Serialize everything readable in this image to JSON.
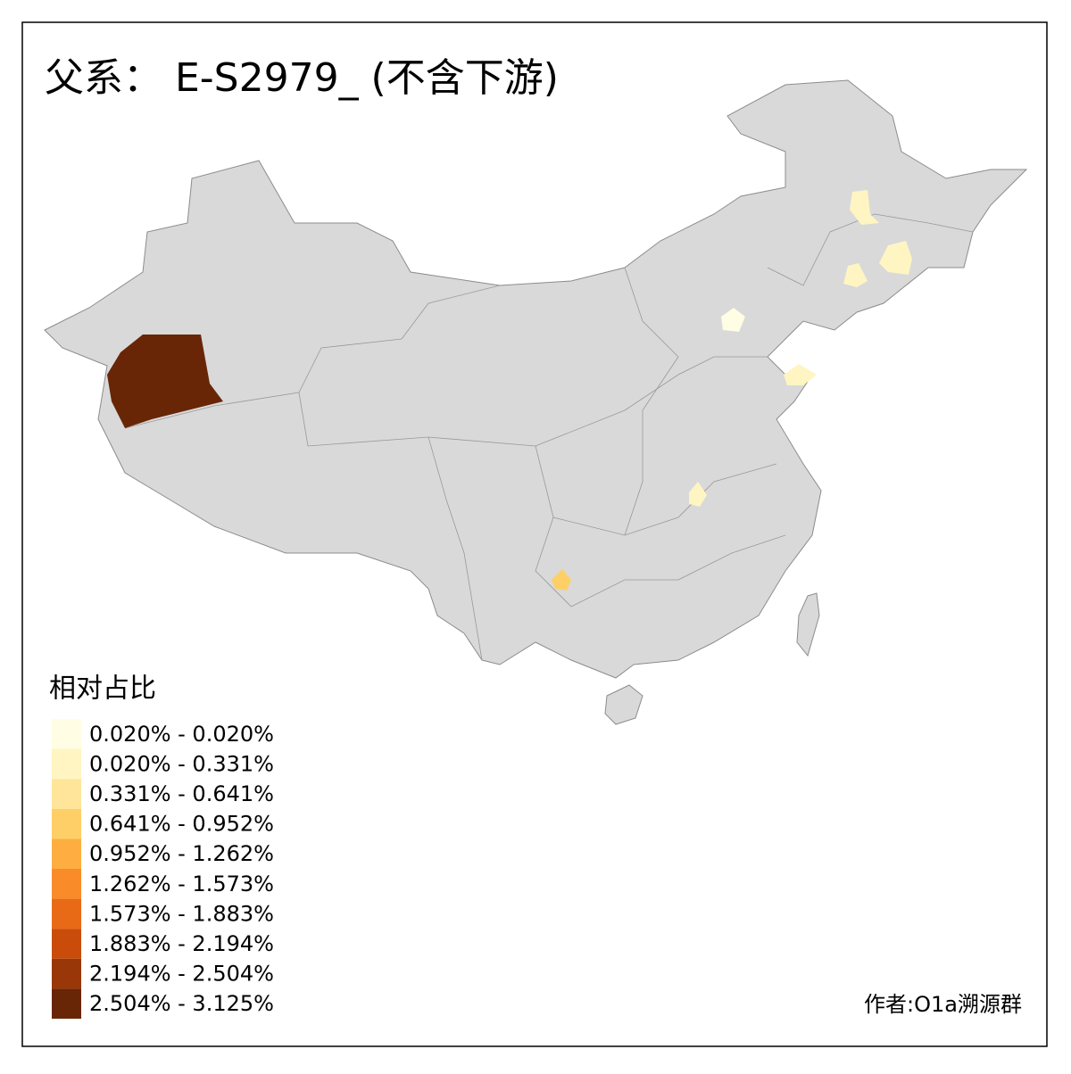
{
  "title": "父系： E-S2979_ (不含下游)",
  "legend": {
    "title": "相对占比",
    "items": [
      {
        "label": "0.020% - 0.020%",
        "color": "#fffde3"
      },
      {
        "label": "0.020% - 0.331%",
        "color": "#fff5c2"
      },
      {
        "label": "0.331% - 0.641%",
        "color": "#fee59a"
      },
      {
        "label": "0.641% - 0.952%",
        "color": "#fecf66"
      },
      {
        "label": "0.952% - 1.262%",
        "color": "#feae40"
      },
      {
        "label": "1.262% - 1.573%",
        "color": "#f98b29"
      },
      {
        "label": "1.573% - 1.883%",
        "color": "#e86a16"
      },
      {
        "label": "1.883% - 2.194%",
        "color": "#c94c0a"
      },
      {
        "label": "2.194% - 2.504%",
        "color": "#993708"
      },
      {
        "label": "2.504% - 3.125%",
        "color": "#682607"
      }
    ]
  },
  "credit": "作者:O1a溯源群"
}
